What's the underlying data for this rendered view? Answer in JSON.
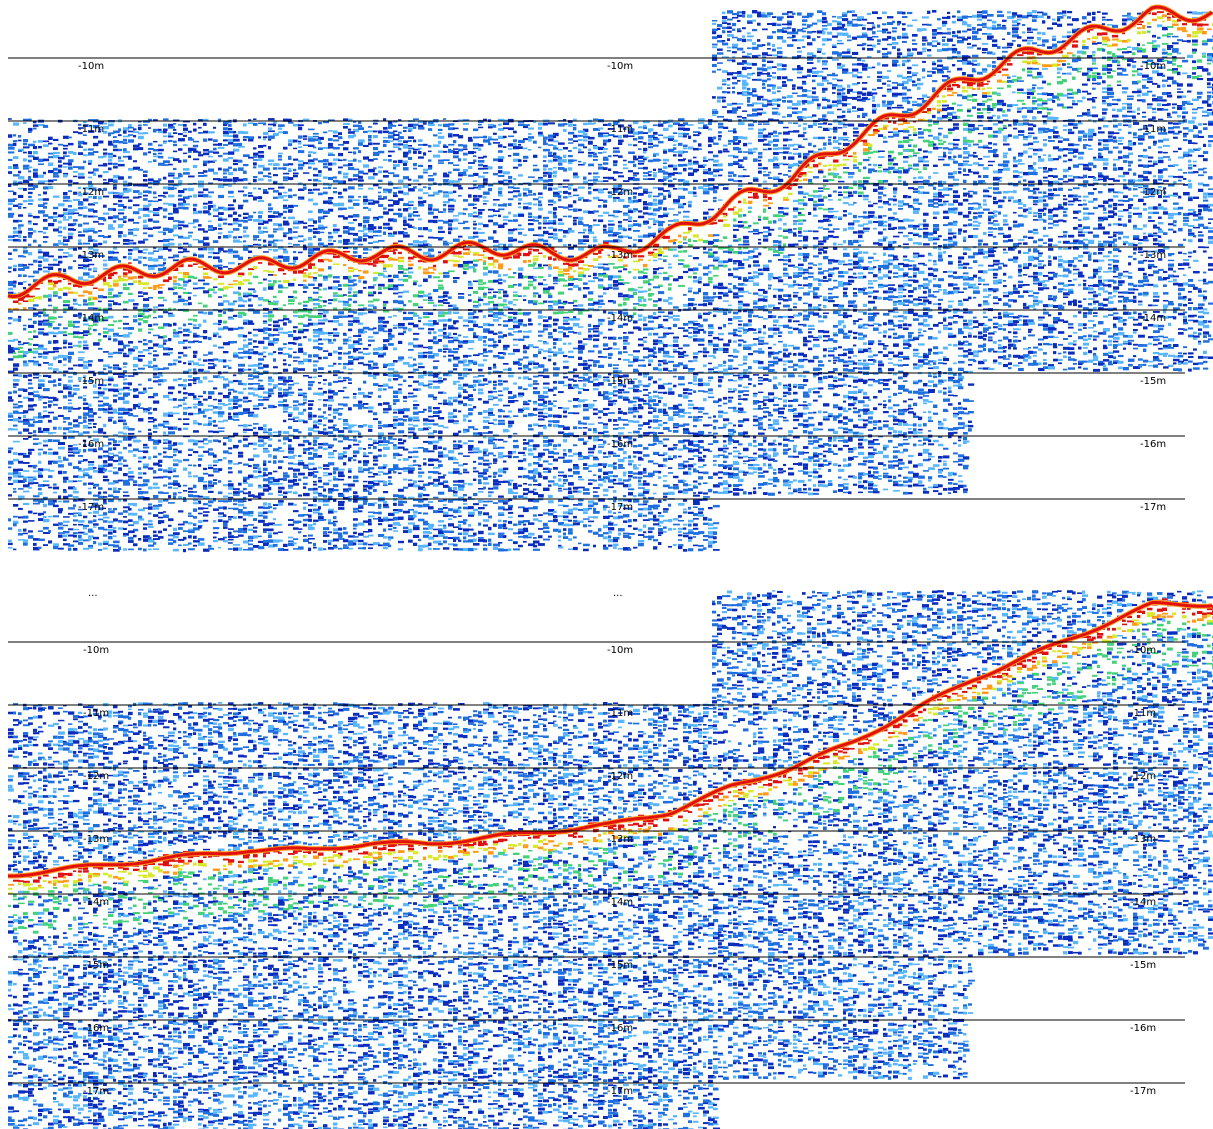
{
  "chart_data": [
    {
      "type": "heatmap",
      "panel": "upper",
      "y_label_unit": "m",
      "depth_ticks": [
        "-10m",
        "-11m",
        "-12m",
        "-13m",
        "-14m",
        "-15m",
        "-16m",
        "-17m"
      ],
      "ylim": [
        -17.8,
        -9.3
      ],
      "truncated_label": "...",
      "bottom_profile": {
        "x": [
          0,
          0.05,
          0.1,
          0.15,
          0.2,
          0.25,
          0.3,
          0.35,
          0.4,
          0.45,
          0.5,
          0.55,
          0.6,
          0.65,
          0.7,
          0.75,
          0.8,
          0.85,
          0.9,
          0.95
        ],
        "depth": [
          -13.7,
          -13.5,
          -13.4,
          -13.3,
          -13.3,
          -13.2,
          -13.1,
          -13.1,
          -13.0,
          -13.1,
          -13.1,
          -12.8,
          -12.3,
          -11.9,
          -11.3,
          -10.8,
          -10.3,
          -9.9,
          -9.6,
          -9.3
        ]
      },
      "palette": [
        "#0a2dbf",
        "#1f6fe0",
        "#58b6ff",
        "#43d17a",
        "#d8e82a",
        "#ff9a1a",
        "#e01010"
      ]
    },
    {
      "type": "heatmap",
      "panel": "lower",
      "y_label_unit": "m",
      "depth_ticks": [
        "-10m",
        "-11m",
        "-12m",
        "-13m",
        "-14m",
        "-15m",
        "-16m",
        "-17m"
      ],
      "ylim": [
        -17.8,
        -9.3
      ],
      "bottom_profile": {
        "x": [
          0,
          0.05,
          0.1,
          0.15,
          0.2,
          0.25,
          0.3,
          0.35,
          0.4,
          0.45,
          0.5,
          0.55,
          0.6,
          0.65,
          0.7,
          0.75,
          0.8,
          0.85,
          0.9,
          0.95
        ],
        "depth": [
          -13.7,
          -13.6,
          -13.5,
          -13.4,
          -13.3,
          -13.3,
          -13.2,
          -13.2,
          -13.1,
          -13.0,
          -12.9,
          -12.7,
          -12.3,
          -12.0,
          -11.6,
          -11.1,
          -10.6,
          -10.2,
          -9.8,
          -9.4
        ]
      },
      "palette": [
        "#0a2dbf",
        "#1f6fe0",
        "#58b6ff",
        "#43d17a",
        "#d8e82a",
        "#ff9a1a",
        "#e01010"
      ]
    }
  ]
}
